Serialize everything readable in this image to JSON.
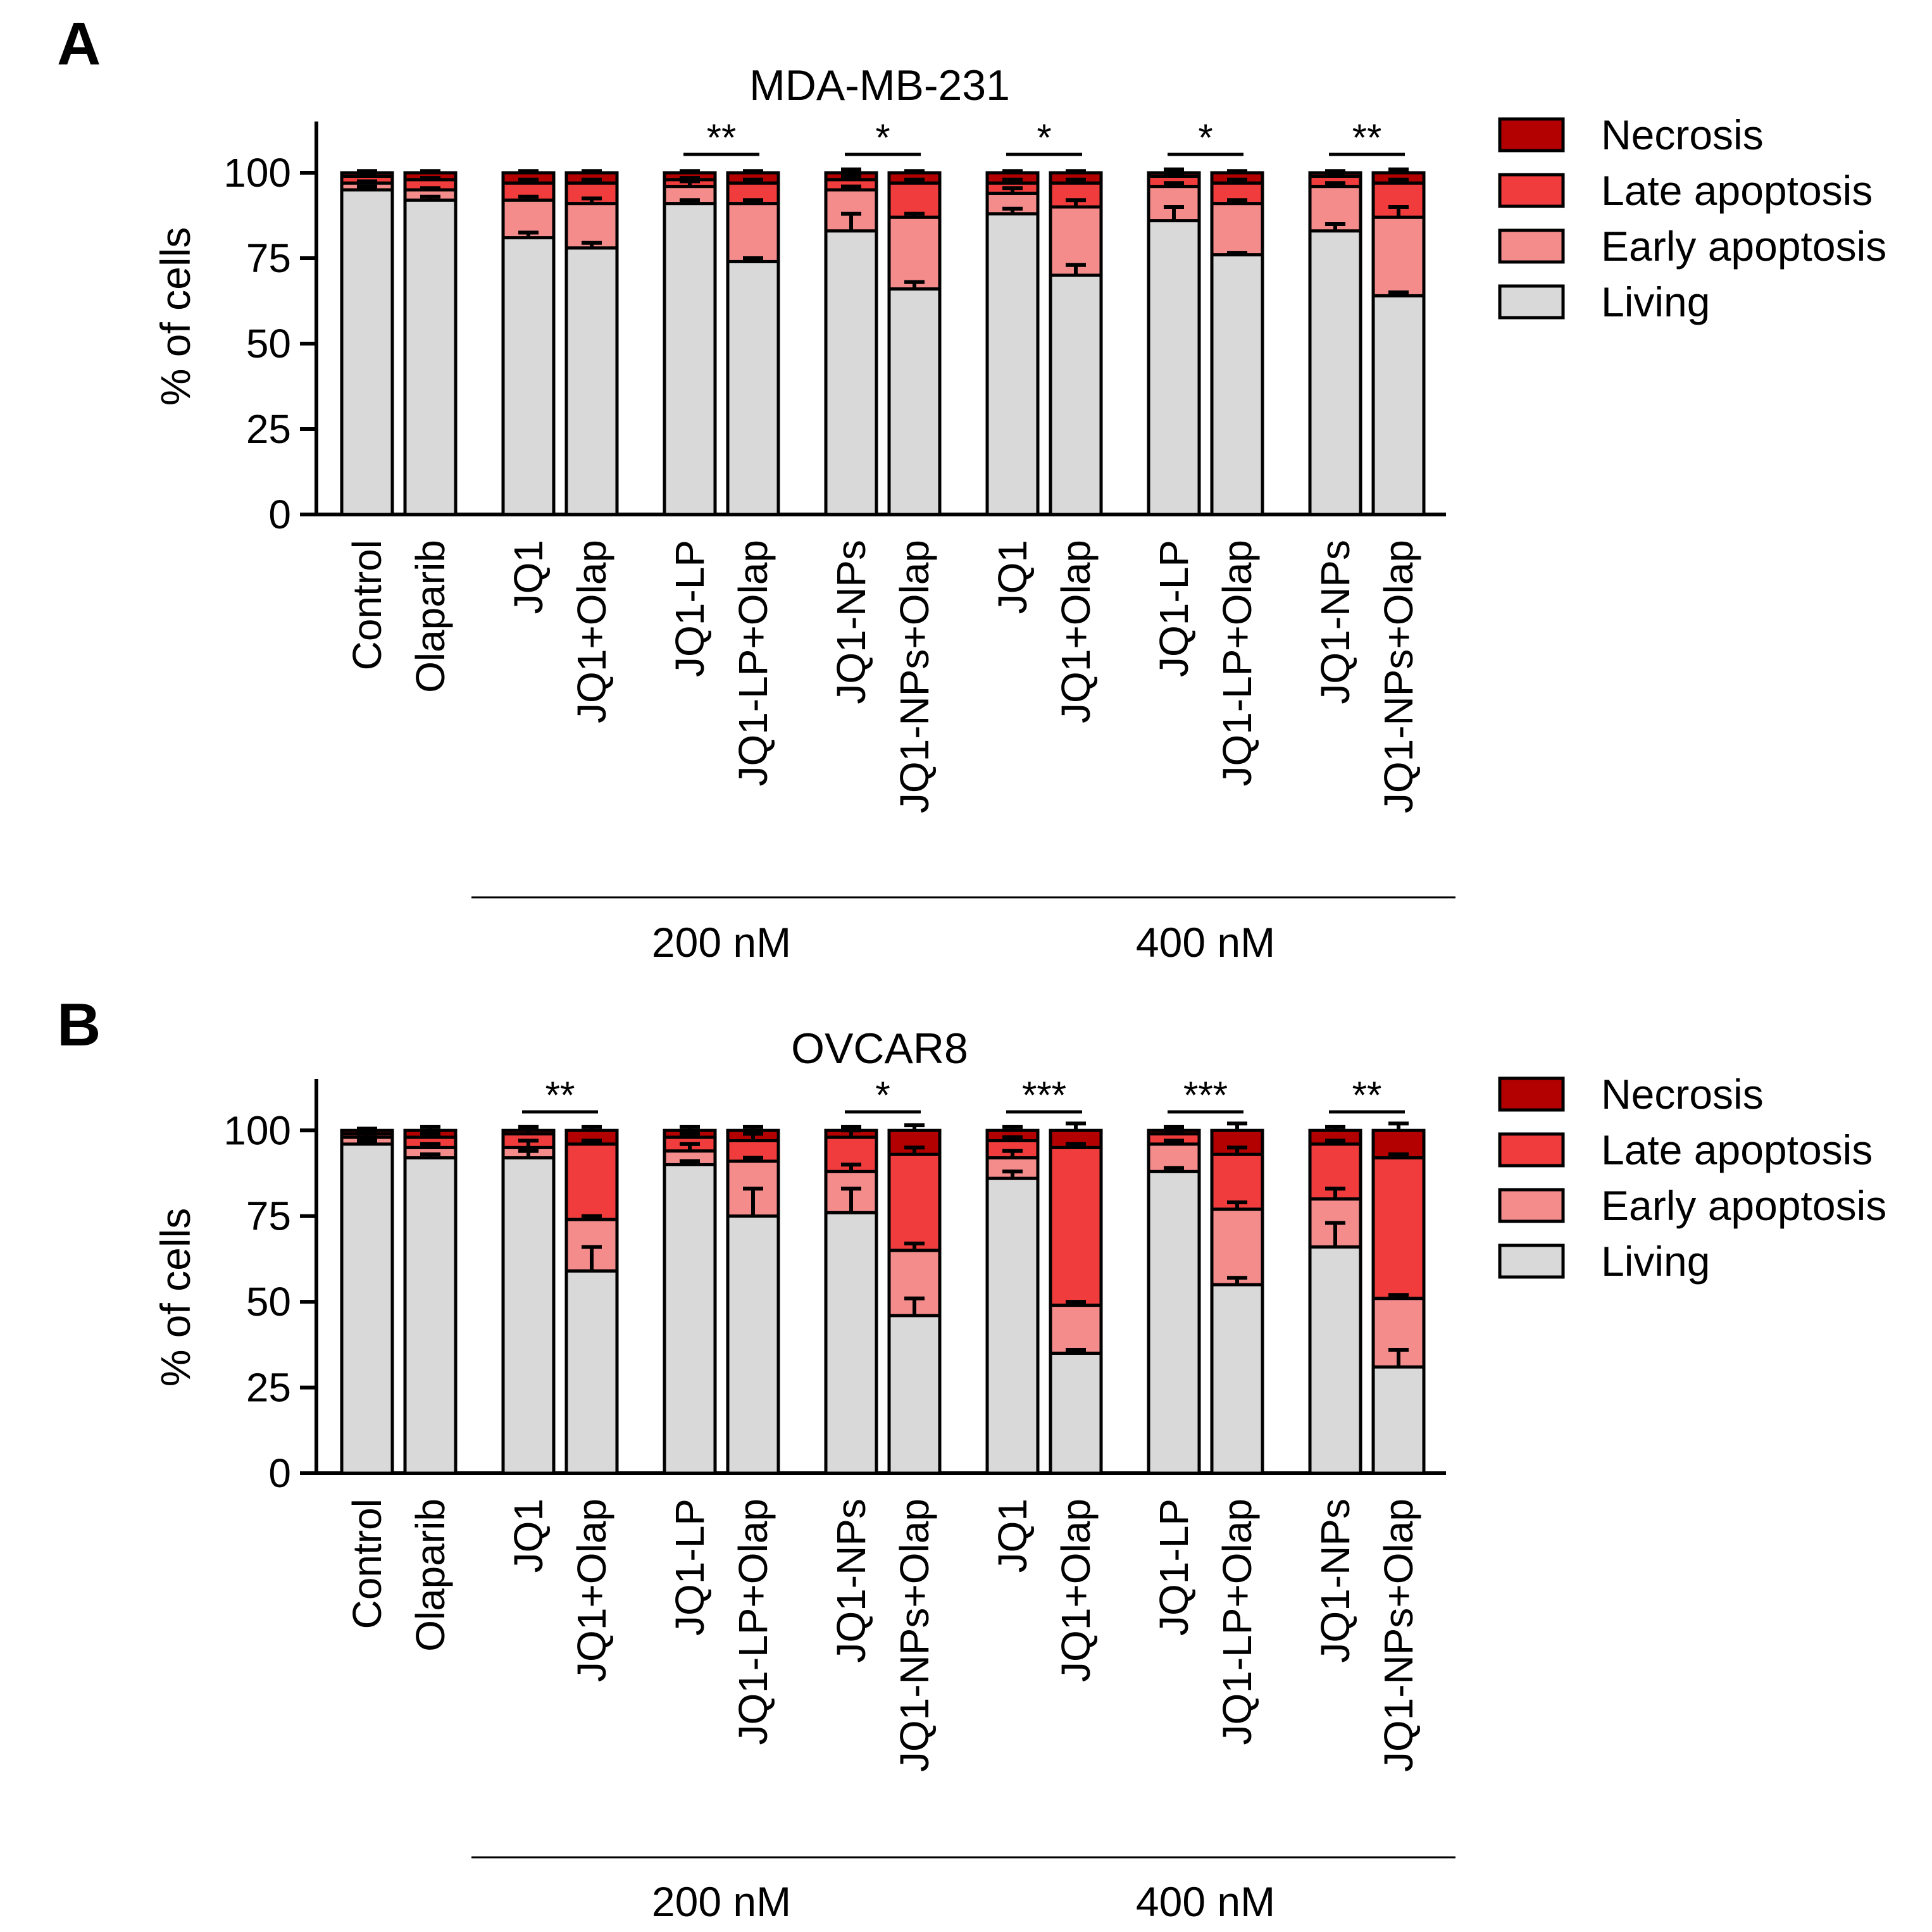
{
  "colors": {
    "living": "#d9d9d9",
    "early": "#f58c8c",
    "late": "#f03c3c",
    "necrosis": "#b30000",
    "axis": "#000000"
  },
  "chart_data": [
    {
      "panel_label": "A",
      "type": "bar",
      "stacked": true,
      "title": "MDA-MB-231",
      "ylabel": "% of cells",
      "ylim": [
        0,
        115
      ],
      "yticks": [
        "0",
        "25",
        "50",
        "75",
        "100"
      ],
      "categories": [
        "Control",
        "Olaparib",
        "JQ1",
        "JQ1+Olap",
        "JQ1-LP",
        "JQ1-LP+Olap",
        "JQ1-NPs",
        "JQ1-NPs+Olap",
        "JQ1",
        "JQ1+Olap",
        "JQ1-LP",
        "JQ1-LP+Olap",
        "JQ1-NPs",
        "JQ1-NPs+Olap"
      ],
      "groups": [
        {
          "label": "200 nM",
          "from": 2,
          "to": 7
        },
        {
          "label": "400 nM",
          "from": 8,
          "to": 13
        }
      ],
      "series": [
        {
          "name": "Living",
          "color_key": "living",
          "values": [
            95,
            92,
            81,
            78,
            91,
            74,
            83,
            66,
            88,
            70,
            86,
            76,
            83,
            64
          ]
        },
        {
          "name": "Early apoptosis",
          "color_key": "early",
          "values": [
            2,
            3,
            11,
            13,
            5,
            17,
            12,
            21,
            6,
            20,
            10,
            15,
            13,
            23
          ]
        },
        {
          "name": "Late apoptosis",
          "color_key": "late",
          "values": [
            2,
            3,
            5,
            6,
            2,
            6,
            3,
            10,
            3,
            7,
            3,
            6,
            3,
            10
          ]
        },
        {
          "name": "Necrosis",
          "color_key": "necrosis",
          "values": [
            1,
            2,
            3,
            3,
            2,
            3,
            2,
            3,
            3,
            3,
            1,
            3,
            1,
            3
          ]
        }
      ],
      "errors": [
        [
          1,
          1,
          1.5,
          1.5,
          1,
          1,
          5,
          2,
          1.5,
          3,
          4,
          0.5,
          2,
          1
        ],
        [
          0.5,
          0.5,
          1,
          1.5,
          1.5,
          1,
          1,
          1,
          1.5,
          2,
          1,
          1,
          1,
          3
        ],
        [
          0.5,
          0.5,
          1,
          1,
          0.5,
          1,
          1,
          1,
          1,
          1,
          1,
          1,
          0.5,
          1
        ],
        [
          0.5,
          0.5,
          0.5,
          0.5,
          0.5,
          0.5,
          1,
          0.5,
          0.5,
          0.5,
          1,
          0.5,
          0.5,
          1
        ]
      ],
      "significance": [
        {
          "left": 4,
          "right": 5,
          "label": "**"
        },
        {
          "left": 6,
          "right": 7,
          "label": "*"
        },
        {
          "left": 8,
          "right": 9,
          "label": "*"
        },
        {
          "left": 10,
          "right": 11,
          "label": "*"
        },
        {
          "left": 12,
          "right": 13,
          "label": "**"
        }
      ],
      "legend": [
        "Necrosis",
        "Late apoptosis",
        "Early apoptosis",
        "Living"
      ],
      "legend_position": "right"
    },
    {
      "panel_label": "B",
      "type": "bar",
      "stacked": true,
      "title": "OVCAR8",
      "ylabel": "% of cells",
      "ylim": [
        0,
        115
      ],
      "yticks": [
        "0",
        "25",
        "50",
        "75",
        "100"
      ],
      "categories": [
        "Control",
        "Olaparib",
        "JQ1",
        "JQ1+Olap",
        "JQ1-LP",
        "JQ1-LP+Olap",
        "JQ1-NPs",
        "JQ1-NPs+Olap",
        "JQ1",
        "JQ1+Olap",
        "JQ1-LP",
        "JQ1-LP+Olap",
        "JQ1-NPs",
        "JQ1-NPs+Olap"
      ],
      "groups": [
        {
          "label": "200 nM",
          "from": 2,
          "to": 7
        },
        {
          "label": "400 nM",
          "from": 8,
          "to": 13
        }
      ],
      "series": [
        {
          "name": "Living",
          "color_key": "living",
          "values": [
            96,
            92,
            92,
            59,
            90,
            75,
            76,
            46,
            86,
            35,
            88,
            55,
            66,
            31
          ]
        },
        {
          "name": "Early apoptosis",
          "color_key": "early",
          "values": [
            2,
            3,
            3,
            15,
            4,
            16,
            12,
            19,
            6,
            14,
            8,
            22,
            14,
            20
          ]
        },
        {
          "name": "Late apoptosis",
          "color_key": "late",
          "values": [
            1,
            3,
            4,
            22,
            4,
            6,
            10,
            28,
            5,
            46,
            3,
            16,
            16,
            41
          ]
        },
        {
          "name": "Necrosis",
          "color_key": "necrosis",
          "values": [
            1,
            2,
            1,
            4,
            2,
            3,
            2,
            7,
            3,
            5,
            1,
            7,
            4,
            8
          ]
        }
      ],
      "errors": [
        [
          1,
          1,
          2,
          7,
          1,
          8,
          7,
          5,
          2,
          1,
          1,
          2,
          7,
          5
        ],
        [
          1,
          1,
          2,
          1,
          2,
          1,
          2,
          2,
          2,
          1,
          1,
          2,
          3,
          1
        ],
        [
          0.5,
          1,
          2,
          1,
          1,
          2,
          2,
          2,
          1,
          1,
          1,
          2,
          1,
          1
        ],
        [
          0.5,
          1,
          1,
          1,
          1,
          1,
          1,
          1.5,
          1,
          2,
          1,
          2,
          1,
          2
        ]
      ],
      "significance": [
        {
          "left": 2,
          "right": 3,
          "label": "**"
        },
        {
          "left": 6,
          "right": 7,
          "label": "*"
        },
        {
          "left": 8,
          "right": 9,
          "label": "***"
        },
        {
          "left": 10,
          "right": 11,
          "label": "***"
        },
        {
          "left": 12,
          "right": 13,
          "label": "**"
        }
      ],
      "legend": [
        "Necrosis",
        "Late apoptosis",
        "Early apoptosis",
        "Living"
      ],
      "legend_position": "right"
    }
  ]
}
